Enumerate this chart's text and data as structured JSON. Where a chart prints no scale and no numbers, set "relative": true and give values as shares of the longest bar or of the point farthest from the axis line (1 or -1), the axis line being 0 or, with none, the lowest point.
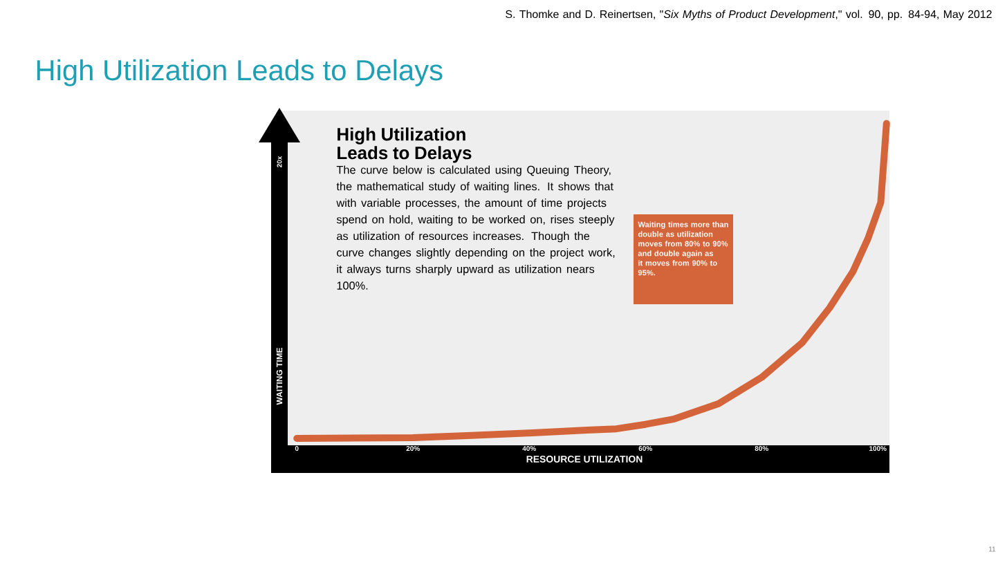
{
  "chart_data": {
    "type": "line",
    "title": "High Utilization Leads to Delays",
    "subtitle": "High Utilization Leads to Delays",
    "xlabel": "RESOURCE UTILIZATION",
    "ylabel": "WAITING TIME",
    "relative": true,
    "x": [
      0,
      20,
      30,
      40,
      50,
      55,
      60,
      65,
      72.6,
      80,
      87,
      91.7,
      95.7,
      98.3,
      100.5,
      101.5
    ],
    "values": [
      0.013,
      0.015,
      0.022,
      0.03,
      0.039,
      0.043,
      0.057,
      0.074,
      0.122,
      0.204,
      0.313,
      0.422,
      0.535,
      0.639,
      0.752,
      1
    ],
    "color": "#d4643a",
    "line_style": "solid",
    "xlim": [
      -3,
      102
    ],
    "xticks": [
      0,
      {
        "value": 20,
        "label": "20%"
      },
      {
        "value": 40,
        "label": "40%"
      },
      {
        "value": 60,
        "label": "60%"
      },
      {
        "value": 80,
        "label": "80%"
      },
      {
        "value": 100,
        "label": "100%"
      }
    ],
    "annotations": [
      "The curve below is calculated using Queuing Theory, the mathematical study of waiting lines. It shows that with variable processes, the amount of time projects spend on hold, waiting to be worked on, rises steeply as utilization of resources increases. Though the curve changes slightly depending on the project work, it always turns sharply upward as utilization nears 100%.",
      "Waiting times more than double as utilization moves from 80% to 90% and double again as it moves from 90% to 95%.",
      "S. Thomke and D. Reinertsen, \"*Six Myths of Product Development*,\" vol. 90, pp. 84-94, May 2012",
      "11",
      "20x"
    ]
  }
}
